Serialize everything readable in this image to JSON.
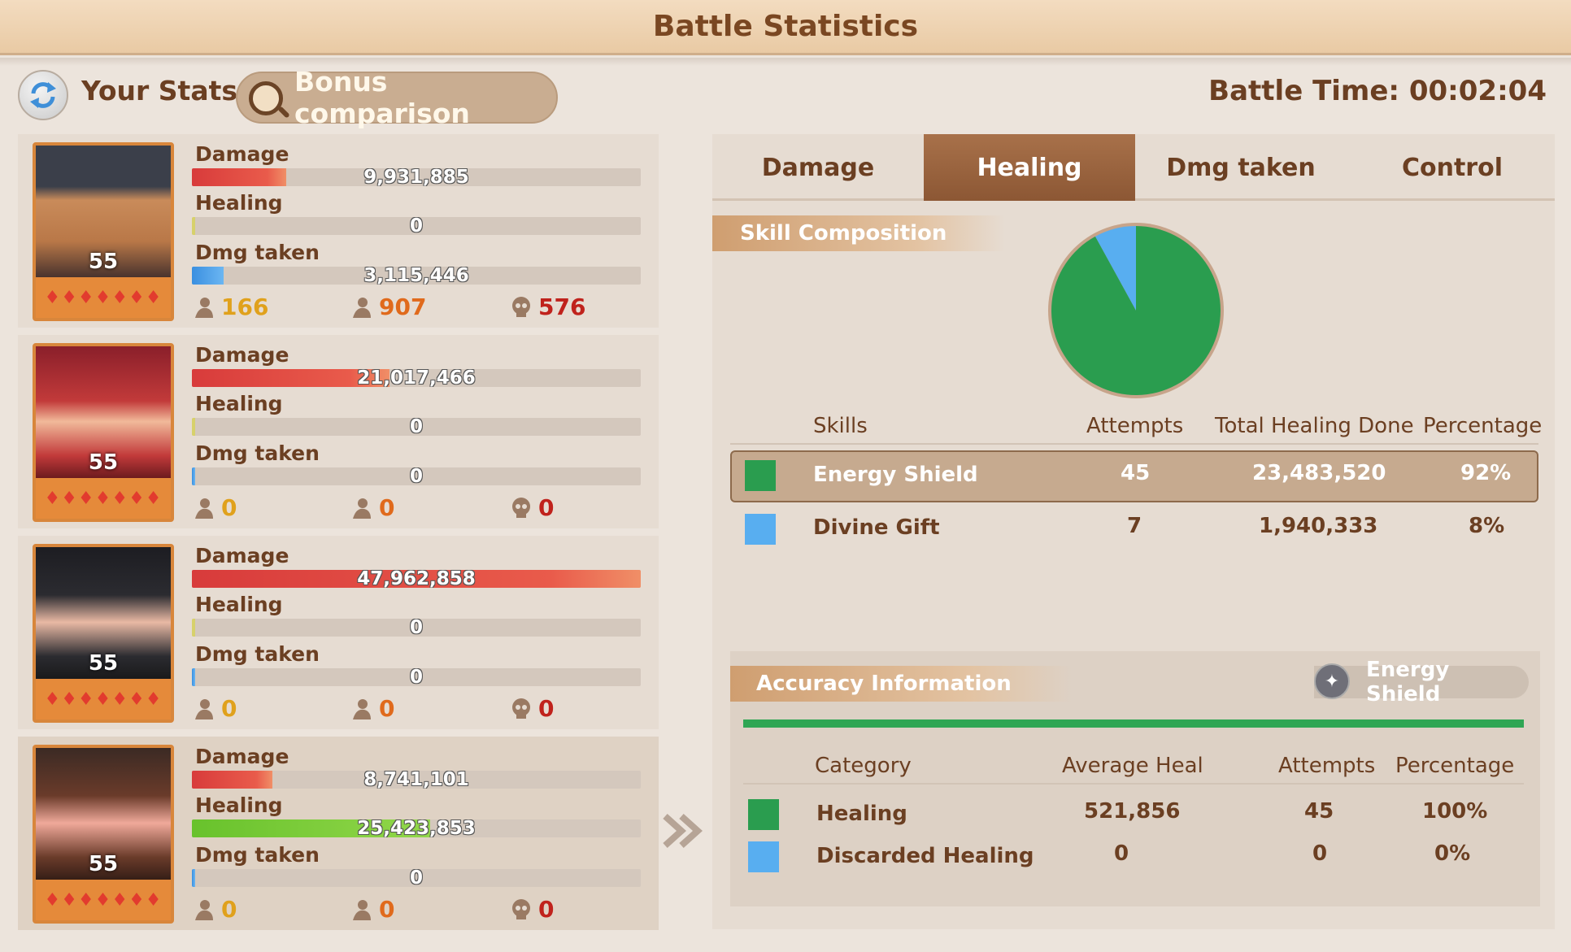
{
  "title": "Battle Statistics",
  "top": {
    "your_stats": "Your Stats",
    "bonus_comparison": "Bonus comparison",
    "battle_time": "Battle Time: 00:02:04"
  },
  "heroes": [
    {
      "level": "55",
      "damage_label": "Damage",
      "damage": "9,931,885",
      "damage_fraction": 0.21,
      "healing_label": "Healing",
      "healing": "0",
      "healing_fraction": 0.0,
      "dmg_taken_label": "Dmg taken",
      "dmg_taken": "3,115,446",
      "dmg_taken_fraction": 0.07,
      "counts": [
        "166",
        "907",
        "576"
      ]
    },
    {
      "level": "55",
      "damage_label": "Damage",
      "damage": "21,017,466",
      "damage_fraction": 0.44,
      "healing_label": "Healing",
      "healing": "0",
      "healing_fraction": 0.0,
      "dmg_taken_label": "Dmg taken",
      "dmg_taken": "0",
      "dmg_taken_fraction": 0.0,
      "counts": [
        "0",
        "0",
        "0"
      ]
    },
    {
      "level": "55",
      "damage_label": "Damage",
      "damage": "47,962,858",
      "damage_fraction": 1.0,
      "healing_label": "Healing",
      "healing": "0",
      "healing_fraction": 0.0,
      "dmg_taken_label": "Dmg taken",
      "dmg_taken": "0",
      "dmg_taken_fraction": 0.0,
      "counts": [
        "0",
        "0",
        "0"
      ]
    },
    {
      "level": "55",
      "damage_label": "Damage",
      "damage": "8,741,101",
      "damage_fraction": 0.18,
      "healing_label": "Healing",
      "healing": "25,423,853",
      "healing_fraction": 0.53,
      "dmg_taken_label": "Dmg taken",
      "dmg_taken": "0",
      "dmg_taken_fraction": 0.0,
      "counts": [
        "0",
        "0",
        "0"
      ]
    }
  ],
  "tabs": [
    "Damage",
    "Healing",
    "Dmg taken",
    "Control"
  ],
  "active_tab": "Healing",
  "skill_composition": {
    "title": "Skill Composition",
    "headers": [
      "Skills",
      "Attempts",
      "Total Healing Done",
      "Percentage"
    ],
    "rows": [
      {
        "name": "Energy Shield",
        "attempts": "45",
        "total": "23,483,520",
        "percentage": "92%",
        "color": "#2a9d4f",
        "share": 0.92
      },
      {
        "name": "Divine Gift",
        "attempts": "7",
        "total": "1,940,333",
        "percentage": "8%",
        "color": "#58aef0",
        "share": 0.08
      }
    ]
  },
  "accuracy": {
    "title": "Accuracy Information",
    "skill": "Energy Shield",
    "headers": [
      "Category",
      "Average Heal",
      "Attempts",
      "Percentage"
    ],
    "rows": [
      {
        "name": "Healing",
        "average": "521,856",
        "attempts": "45",
        "percentage": "100%",
        "color": "#2a9d4f"
      },
      {
        "name": "Discarded Healing",
        "average": "0",
        "attempts": "0",
        "percentage": "0%",
        "color": "#58aef0"
      }
    ]
  },
  "colors": {
    "count1": "#e0a11c",
    "count2": "#e06a1c",
    "count3": "#c0221c"
  }
}
